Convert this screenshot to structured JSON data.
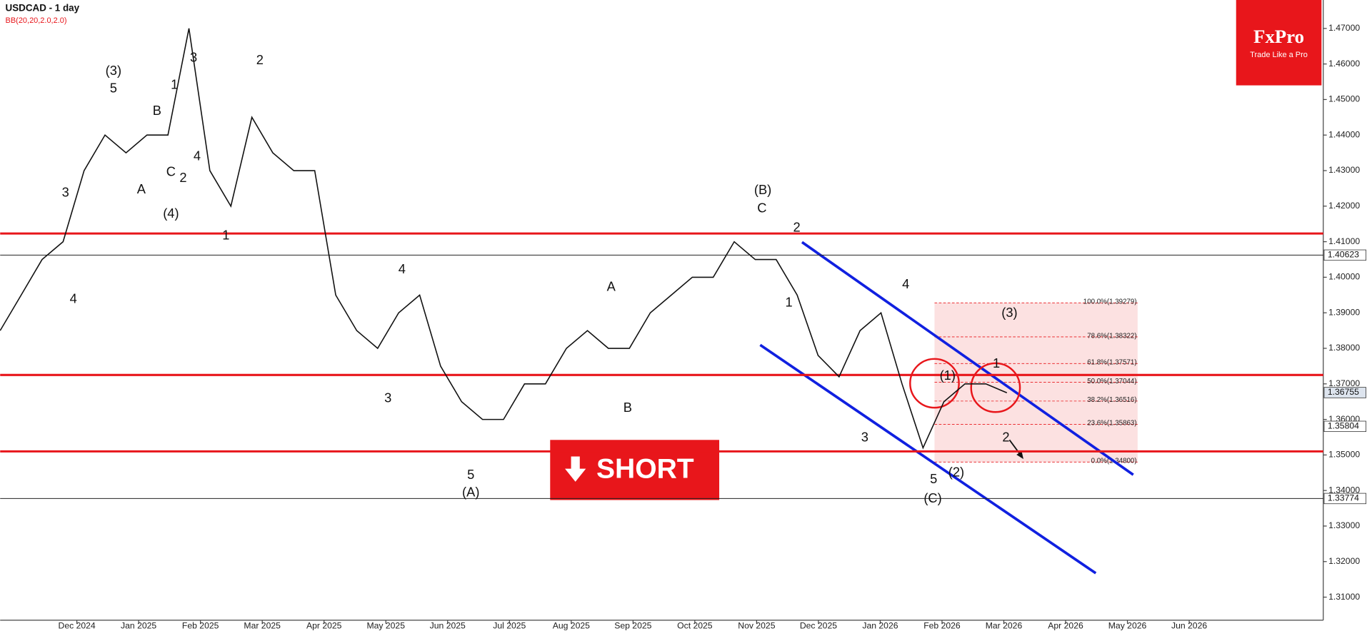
{
  "chart_data": {
    "type": "line",
    "title": "USDCAD - 1 day",
    "subtitle": "BB(20,20,2.0,2.0)",
    "brand": {
      "name": "FxPro",
      "tagline": "Trade Like a Pro"
    },
    "banner": "SHORT",
    "series": [
      {
        "name": "USDCAD",
        "color": "#111111",
        "values": [
          1.385,
          1.395,
          1.405,
          1.41,
          1.43,
          1.44,
          1.435,
          1.44,
          1.44,
          1.47,
          1.43,
          1.42,
          1.445,
          1.435,
          1.43,
          1.43,
          1.395,
          1.385,
          1.38,
          1.39,
          1.395,
          1.375,
          1.365,
          1.36,
          1.36,
          1.37,
          1.37,
          1.38,
          1.385,
          1.38,
          1.38,
          1.39,
          1.395,
          1.4,
          1.4,
          1.41,
          1.405,
          1.405,
          1.395,
          1.378,
          1.372,
          1.385,
          1.39,
          1.37,
          1.352,
          1.365,
          1.37,
          1.37,
          1.3675
        ]
      }
    ],
    "xticks": [
      "Dec 2024",
      "Jan 2025",
      "Feb 2025",
      "Mar 2025",
      "Apr 2025",
      "May 2025",
      "Jun 2025",
      "Jul 2025",
      "Aug 2025",
      "Sep 2025",
      "Oct 2025",
      "Nov 2025",
      "Dec 2025",
      "Jan 2026",
      "Feb 2026",
      "Mar 2026",
      "Apr 2026",
      "May 2026",
      "Jun 2026"
    ],
    "ylim": [
      1.3035,
      1.478
    ],
    "yticks": [
      {
        "value": 1.31,
        "label": "1.31000"
      },
      {
        "value": 1.32,
        "label": "1.32000"
      },
      {
        "value": 1.33,
        "label": "1.33000"
      },
      {
        "value": 1.34,
        "label": "1.34000"
      },
      {
        "value": 1.35,
        "label": "1.35000"
      },
      {
        "value": 1.36,
        "label": "1.36000"
      },
      {
        "value": 1.37,
        "label": "1.37000"
      },
      {
        "value": 1.38,
        "label": "1.38000"
      },
      {
        "value": 1.39,
        "label": "1.39000"
      },
      {
        "value": 1.4,
        "label": "1.40000"
      },
      {
        "value": 1.41,
        "label": "1.41000"
      },
      {
        "value": 1.42,
        "label": "1.42000"
      },
      {
        "value": 1.43,
        "label": "1.43000"
      },
      {
        "value": 1.44,
        "label": "1.44000"
      },
      {
        "value": 1.45,
        "label": "1.45000"
      },
      {
        "value": 1.46,
        "label": "1.46000"
      },
      {
        "value": 1.47,
        "label": "1.47000"
      }
    ],
    "levels": [
      {
        "value": 1.4123,
        "color": "#e8161b"
      },
      {
        "value": 1.3725,
        "color": "#e8161b"
      },
      {
        "value": 1.351,
        "color": "#e8161b"
      }
    ],
    "price_tags": [
      {
        "value": 1.40623,
        "line": true
      },
      {
        "value": 1.36755,
        "line": false
      },
      {
        "value": 1.35804,
        "line": false
      },
      {
        "value": 1.33774,
        "line": true
      }
    ],
    "fib_levels": [
      {
        "value": 1.39279,
        "label": "100.0%(1.39279)"
      },
      {
        "value": 1.38322,
        "label": "78.6%(1.38322)"
      },
      {
        "value": 1.37571,
        "label": "61.8%(1.37571)"
      },
      {
        "value": 1.37044,
        "label": "50.0%(1.37044)"
      },
      {
        "value": 1.36516,
        "label": "38.2%(1.36516)"
      },
      {
        "value": 1.35863,
        "label": "23.6%(1.35863)"
      },
      {
        "value": 1.348,
        "label": "0.0%(1.34800)"
      }
    ],
    "annotations": [
      "(3)",
      "5",
      "3",
      "2",
      "1",
      "B",
      "C",
      "(4)",
      "A",
      "3",
      "4",
      "1",
      "2",
      "4",
      "4",
      "3",
      "5",
      "(A)",
      "A",
      "B",
      "(B)",
      "C",
      "2",
      "1",
      "4",
      "3",
      "5",
      "(C)",
      "(1)",
      "(2)",
      "(3)",
      "1",
      "2"
    ]
  }
}
